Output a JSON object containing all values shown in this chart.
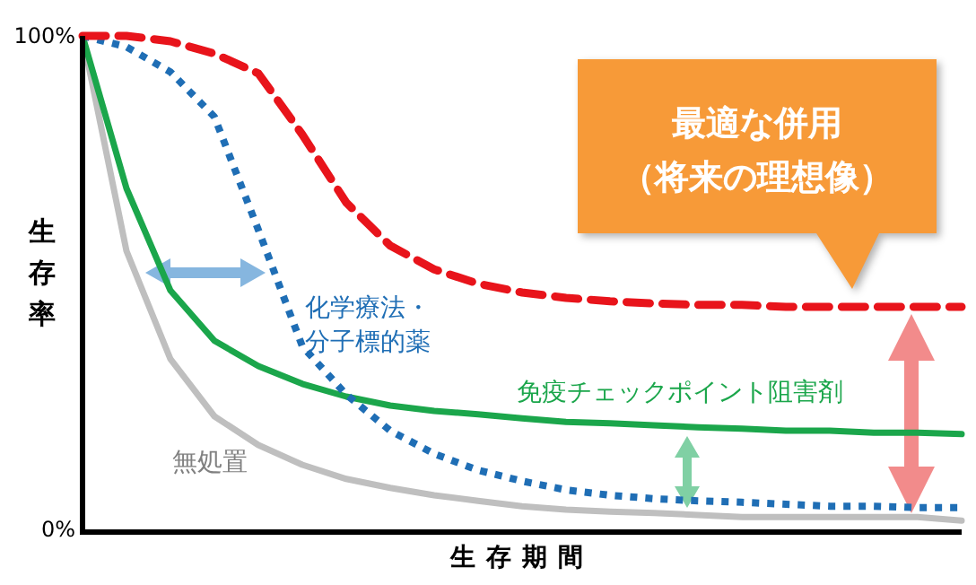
{
  "chart_data": {
    "type": "line",
    "xlabel": "生存期間",
    "ylabel": "生存率",
    "categories": [
      null,
      null,
      null,
      null,
      null,
      null,
      null,
      null,
      null,
      null,
      null,
      null,
      null,
      null,
      null,
      null,
      null,
      null,
      null,
      null,
      null
    ],
    "ylim": [
      0,
      100
    ],
    "yticks": [
      {
        "value": 0,
        "label": "0%"
      },
      {
        "value": 100,
        "label": "100%"
      }
    ],
    "annotations": [
      "最適な併用（将来の理想像）"
    ],
    "grid": false,
    "legend": false,
    "marker": "none",
    "series": [
      {
        "color": "#e8141b",
        "line_style": "dashed",
        "values": [
          100,
          100,
          98.9,
          96.4,
          92.4,
          80,
          66.2,
          57.5,
          52.7,
          49.8,
          48,
          46.9,
          46.2,
          45.8,
          45.5,
          45.5,
          45.1,
          45.1,
          45.1,
          45.1,
          45.1
        ]
      },
      {
        "name": "化学療法・分子標的薬",
        "color": "#1f6eb5",
        "line_style": "dotted",
        "values": [
          100,
          97.8,
          92.7,
          83.6,
          60.7,
          37.1,
          27.3,
          20,
          15.3,
          12,
          9.8,
          8,
          6.9,
          6.2,
          5.8,
          5.5,
          5.1,
          4.7,
          4.7,
          4.4,
          4.4
        ]
      },
      {
        "name": "免疫チェックポイント阻害剤",
        "color": "#1ba64b",
        "line_style": "solid",
        "values": [
          100,
          69.1,
          48.4,
          38.2,
          33.1,
          29.5,
          26.9,
          25.1,
          24,
          23.3,
          22.5,
          21.8,
          21.5,
          21.1,
          20.7,
          20.4,
          20,
          20,
          19.6,
          19.6,
          19.3
        ]
      },
      {
        "name": "無処置",
        "color": "#bfbfbf",
        "line_style": "solid",
        "values": [
          100,
          56.4,
          34.5,
          22.9,
          17.1,
          13.1,
          10.2,
          8.4,
          6.9,
          5.8,
          4.7,
          4,
          3.6,
          3.3,
          2.9,
          2.5,
          2.5,
          2.5,
          2.5,
          2.5,
          1.8
        ]
      }
    ]
  }
}
